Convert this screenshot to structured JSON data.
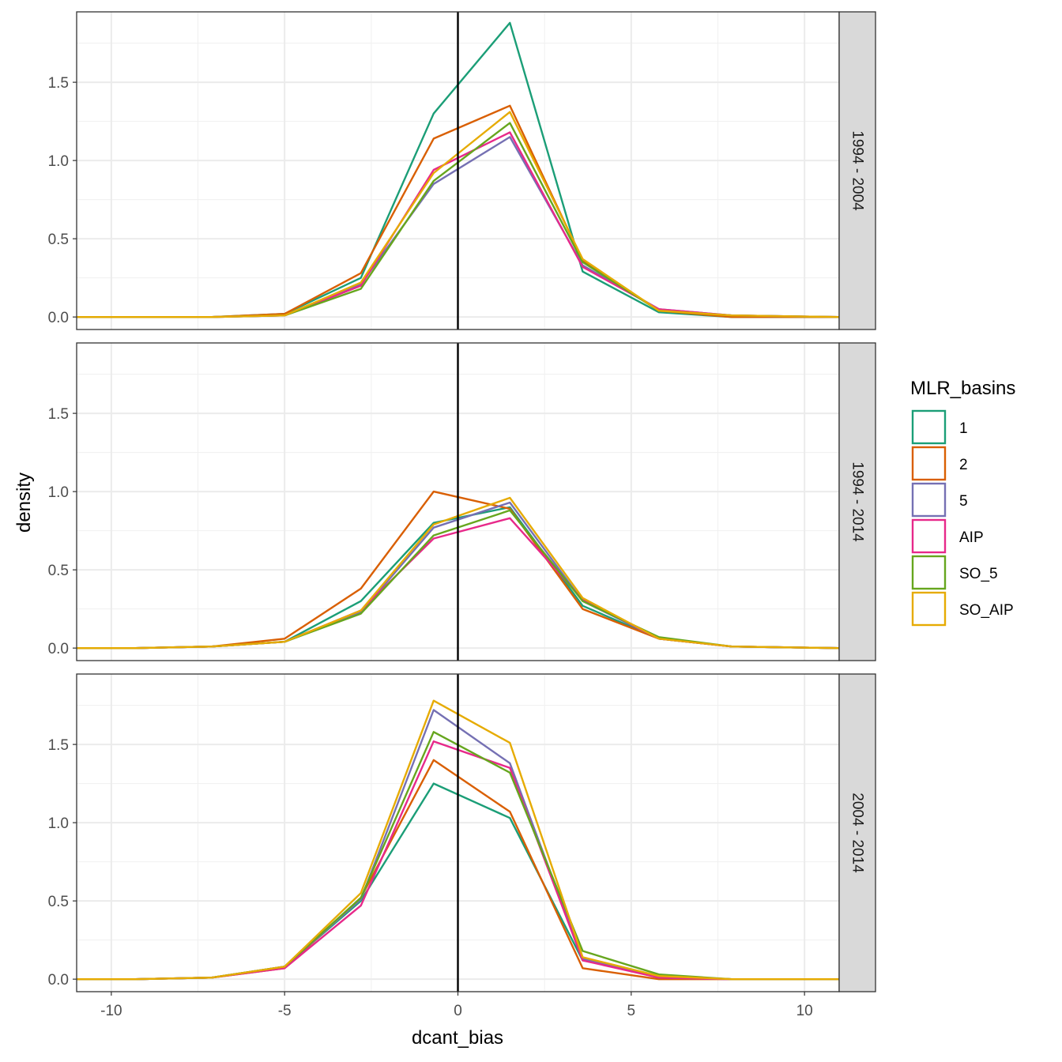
{
  "chart_data": {
    "type": "line",
    "xlabel": "dcant_bias",
    "ylabel": "density",
    "xlim": [
      -11,
      11
    ],
    "ylim": [
      -0.08,
      1.95
    ],
    "x_ticks": [
      -10,
      -5,
      0,
      5,
      10
    ],
    "x_tick_labels": [
      "-10",
      "-5",
      "0",
      "5",
      "10"
    ],
    "y_ticks": [
      0,
      0.5,
      1.0,
      1.5
    ],
    "y_tick_labels": [
      "0.0",
      "0.5",
      "1.0",
      "1.5"
    ],
    "vline_x": 0,
    "grid": true,
    "legend": {
      "title": "MLR_basins",
      "placement": "right",
      "entries": [
        "1",
        "2",
        "5",
        "AIP",
        "SO_5",
        "SO_AIP"
      ]
    },
    "colors": {
      "1": "#1b9e77",
      "2": "#d95f02",
      "5": "#7570b3",
      "AIP": "#e7298a",
      "SO_5": "#66a61e",
      "SO_AIP": "#e6ab02"
    },
    "x": [
      -11.0,
      -9.3,
      -7.1,
      -5.0,
      -2.8,
      -0.7,
      1.5,
      3.6,
      5.8,
      7.9,
      11.0
    ],
    "panels": [
      {
        "strip": "1994 - 2004",
        "series": [
          {
            "name": "1",
            "values": [
              0,
              0,
              0,
              0.02,
              0.25,
              1.3,
              1.88,
              0.29,
              0.03,
              0,
              0
            ]
          },
          {
            "name": "2",
            "values": [
              0,
              0,
              0,
              0.02,
              0.28,
              1.14,
              1.35,
              0.36,
              0.04,
              0,
              0
            ]
          },
          {
            "name": "5",
            "values": [
              0,
              0,
              0,
              0.01,
              0.21,
              0.85,
              1.15,
              0.33,
              0.05,
              0.01,
              0
            ]
          },
          {
            "name": "AIP",
            "values": [
              0,
              0,
              0,
              0.01,
              0.2,
              0.94,
              1.18,
              0.32,
              0.05,
              0.01,
              0
            ]
          },
          {
            "name": "SO_5",
            "values": [
              0,
              0,
              0,
              0.01,
              0.18,
              0.87,
              1.24,
              0.35,
              0.04,
              0.01,
              0
            ]
          },
          {
            "name": "SO_AIP",
            "values": [
              0,
              0,
              0,
              0.01,
              0.22,
              0.92,
              1.31,
              0.37,
              0.04,
              0.01,
              0
            ]
          }
        ]
      },
      {
        "strip": "1994 - 2014",
        "series": [
          {
            "name": "1",
            "values": [
              0,
              0,
              0.01,
              0.04,
              0.3,
              0.8,
              0.9,
              0.27,
              0.06,
              0.01,
              0
            ]
          },
          {
            "name": "2",
            "values": [
              0,
              0,
              0.01,
              0.06,
              0.38,
              1.0,
              0.89,
              0.25,
              0.06,
              0.01,
              0
            ]
          },
          {
            "name": "5",
            "values": [
              0,
              0,
              0.01,
              0.04,
              0.23,
              0.77,
              0.93,
              0.3,
              0.06,
              0.01,
              0
            ]
          },
          {
            "name": "AIP",
            "values": [
              0,
              0,
              0.01,
              0.04,
              0.24,
              0.7,
              0.83,
              0.31,
              0.06,
              0.01,
              0
            ]
          },
          {
            "name": "SO_5",
            "values": [
              0,
              0,
              0.01,
              0.04,
              0.22,
              0.72,
              0.88,
              0.3,
              0.07,
              0.01,
              0
            ]
          },
          {
            "name": "SO_AIP",
            "values": [
              0,
              0,
              0.01,
              0.04,
              0.24,
              0.79,
              0.96,
              0.32,
              0.06,
              0.01,
              0
            ]
          }
        ]
      },
      {
        "strip": "2004 - 2014",
        "series": [
          {
            "name": "1",
            "values": [
              0,
              0,
              0.01,
              0.08,
              0.5,
              1.25,
              1.03,
              0.12,
              0.02,
              0,
              0
            ]
          },
          {
            "name": "2",
            "values": [
              0,
              0,
              0.01,
              0.07,
              0.52,
              1.4,
              1.07,
              0.07,
              0,
              0,
              0
            ]
          },
          {
            "name": "5",
            "values": [
              0,
              0,
              0.01,
              0.08,
              0.51,
              1.72,
              1.38,
              0.13,
              0.01,
              0,
              0
            ]
          },
          {
            "name": "AIP",
            "values": [
              0,
              0,
              0.01,
              0.07,
              0.47,
              1.52,
              1.35,
              0.12,
              0.01,
              0,
              0
            ]
          },
          {
            "name": "SO_5",
            "values": [
              0,
              0,
              0.01,
              0.08,
              0.52,
              1.58,
              1.32,
              0.18,
              0.03,
              0,
              0
            ]
          },
          {
            "name": "SO_AIP",
            "values": [
              0,
              0,
              0.01,
              0.08,
              0.55,
              1.78,
              1.51,
              0.14,
              0.02,
              0,
              0
            ]
          }
        ]
      }
    ]
  }
}
